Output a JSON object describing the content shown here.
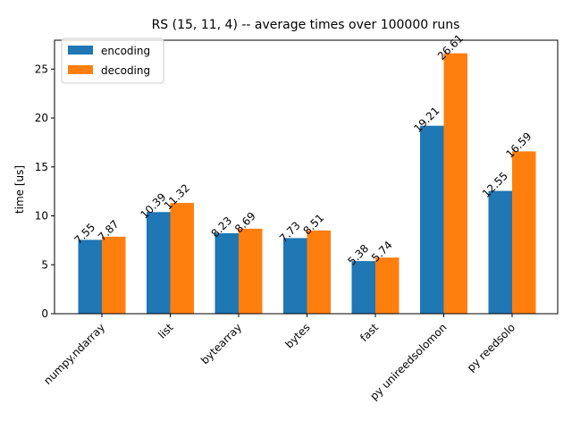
{
  "chart_data": {
    "type": "bar",
    "title": "RS (15, 11, 4) -- average times over 100000 runs",
    "xlabel": "",
    "ylabel": "time [us]",
    "ylim": [
      0,
      27.95
    ],
    "yticks": [
      0,
      5,
      10,
      15,
      20,
      25
    ],
    "categories": [
      "numpy.ndarray",
      "list",
      "bytearray",
      "bytes",
      "fast",
      "py unireedsolomon",
      "py reedsolo"
    ],
    "series": [
      {
        "name": "encoding",
        "color": "#1f77b4",
        "values": [
          7.55,
          10.39,
          8.23,
          7.73,
          5.38,
          19.21,
          12.55
        ],
        "labels": [
          "7.55",
          "10.39",
          "8.23",
          "7.73",
          "5.38",
          "19.21",
          "12.55"
        ]
      },
      {
        "name": "decoding",
        "color": "#ff7f0e",
        "values": [
          7.87,
          11.32,
          8.69,
          8.51,
          5.74,
          26.61,
          16.59
        ],
        "labels": [
          "7.87",
          "11.32",
          "8.69",
          "8.51",
          "5.74",
          "26.61",
          "16.59"
        ]
      }
    ],
    "legend_position": "top-left",
    "grid": false
  }
}
